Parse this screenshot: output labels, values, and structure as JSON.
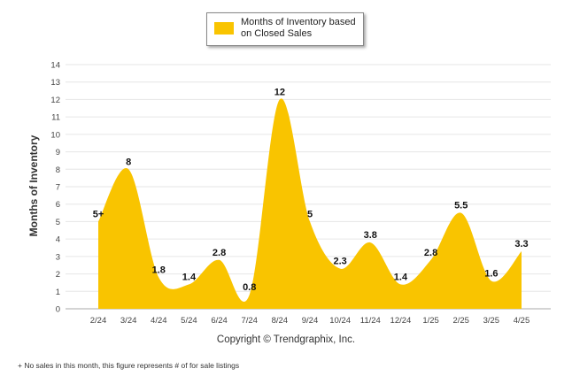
{
  "chart_data": {
    "type": "area",
    "categories": [
      "2/24",
      "3/24",
      "4/24",
      "5/24",
      "6/24",
      "7/24",
      "8/24",
      "9/24",
      "10/24",
      "11/24",
      "12/24",
      "1/25",
      "2/25",
      "3/25",
      "4/25"
    ],
    "series": [
      {
        "name": "Months of Inventory based on Closed Sales",
        "values": [
          5,
          8,
          1.8,
          1.4,
          2.8,
          0.8,
          12,
          5,
          2.3,
          3.8,
          1.4,
          2.8,
          5.5,
          1.6,
          3.3
        ],
        "labels": [
          "5+",
          "8",
          "1.8",
          "1.4",
          "2.8",
          "0.8",
          "12",
          "5",
          "2.3",
          "3.8",
          "1.4",
          "2.8",
          "5.5",
          "1.6",
          "3.3"
        ],
        "color": "#f9c400"
      }
    ],
    "ylabel": "Months of Inventory",
    "ylim": [
      0,
      14
    ],
    "yticks": [
      "0",
      "1",
      "2",
      "3",
      "4",
      "5",
      "6",
      "7",
      "8",
      "9",
      "10",
      "11",
      "12",
      "13",
      "14"
    ],
    "grid": true,
    "legend_position": "top-center"
  },
  "copyright": "Copyright © Trendgraphix, Inc.",
  "footnote": "+ No sales in this month, this figure represents # of for sale listings",
  "colors": {
    "gridline": "#e6e6e6",
    "axis": "#aaaaaa"
  }
}
